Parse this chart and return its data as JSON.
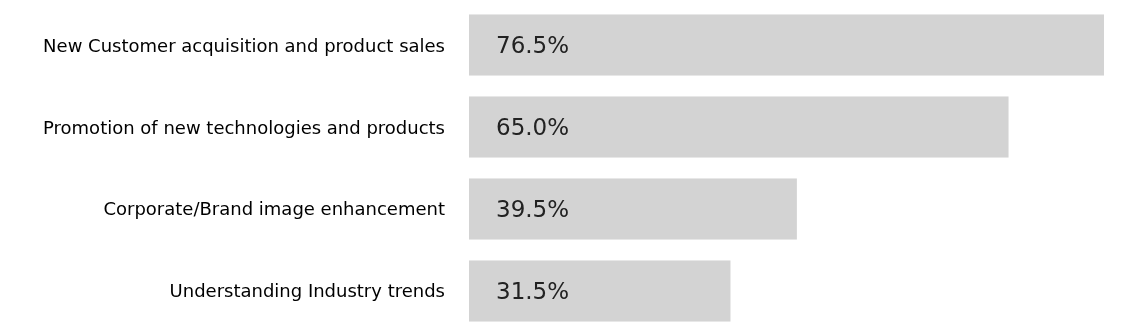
{
  "chart_data": {
    "type": "bar",
    "orientation": "horizontal",
    "categories": [
      "New Customer acquisition and product sales",
      "Promotion of new technologies and products",
      "Corporate/Brand image enhancement",
      "Understanding Industry trends"
    ],
    "values": [
      76.5,
      65.0,
      39.5,
      31.5
    ],
    "value_labels": [
      "76.5%",
      "65.0%",
      "39.5%",
      "31.5%"
    ],
    "color": "#d3d3d3"
  }
}
